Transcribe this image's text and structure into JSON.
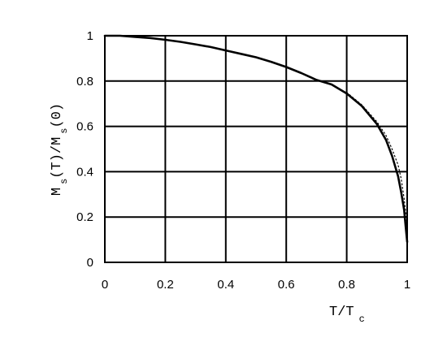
{
  "chart_data": {
    "type": "line",
    "title": "",
    "xlabel": {
      "main": "T/T",
      "sub": "c"
    },
    "ylabel": {
      "part1": "M",
      "sub1": "s",
      "part2": "(T)/M",
      "sub2": "s",
      "part3": "(0)"
    },
    "xlim": [
      0,
      1
    ],
    "ylim": [
      0,
      1
    ],
    "xticks": [
      0,
      0.2,
      0.4,
      0.6,
      0.8,
      1
    ],
    "xtick_labels": [
      "0",
      "0.2",
      "0.4",
      "0.6",
      "0.8",
      "1"
    ],
    "yticks": [
      0,
      0.2,
      0.4,
      0.6,
      0.8,
      1
    ],
    "ytick_labels": [
      "0",
      "0.2",
      "0.4",
      "0.6",
      "0.8",
      "1"
    ],
    "grid": true,
    "series": [
      {
        "style": "solid",
        "x": [
          0,
          0.05,
          0.1,
          0.15,
          0.2,
          0.25,
          0.3,
          0.35,
          0.4,
          0.45,
          0.5,
          0.55,
          0.6,
          0.65,
          0.7,
          0.75,
          0.8,
          0.85,
          0.9,
          0.93,
          0.95,
          0.97,
          0.98,
          0.99,
          0.995,
          1.0
        ],
        "y": [
          1.0,
          1.0,
          0.995,
          0.99,
          0.982,
          0.973,
          0.962,
          0.95,
          0.935,
          0.92,
          0.905,
          0.885,
          0.862,
          0.835,
          0.805,
          0.785,
          0.745,
          0.69,
          0.61,
          0.54,
          0.47,
          0.38,
          0.31,
          0.23,
          0.16,
          0.09
        ]
      },
      {
        "style": "dotted",
        "x": [
          0.8,
          0.85,
          0.9,
          0.93,
          0.95,
          0.97,
          0.98,
          0.99,
          1.0
        ],
        "y": [
          0.75,
          0.695,
          0.62,
          0.56,
          0.5,
          0.43,
          0.37,
          0.28,
          0.16
        ]
      }
    ]
  }
}
